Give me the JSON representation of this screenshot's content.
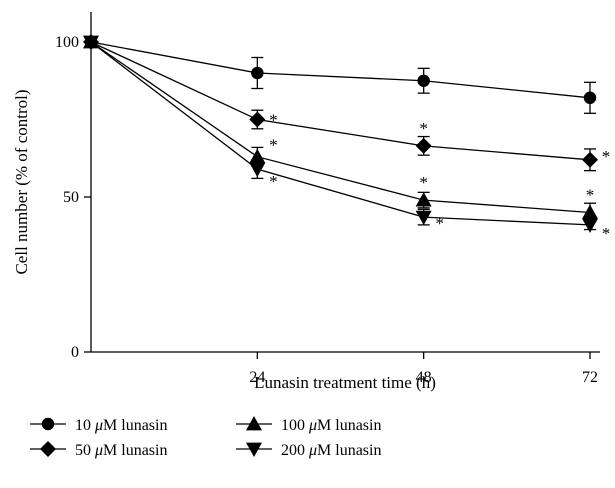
{
  "chart_data": {
    "type": "line",
    "xlabel": "Lunasin treatment time (h)",
    "ylabel": "Cell number (% of control)",
    "x": [
      0,
      24,
      48,
      72
    ],
    "xticks": [
      24,
      48,
      72
    ],
    "xtick_labels": [
      "24",
      "48",
      "72"
    ],
    "yticks": [
      0,
      50,
      100
    ],
    "ytick_labels": [
      "0",
      "50",
      "100"
    ],
    "xlim": [
      0,
      74
    ],
    "ylim": [
      0,
      110
    ],
    "grid": false,
    "legend_placement": "bottom",
    "significance_marker": "*",
    "series": [
      {
        "name": "10 μM lunasin",
        "legend_prefix": "10",
        "legend_mu": "μ",
        "legend_suffix": "M lunasin",
        "marker": "circle",
        "values": [
          100,
          90,
          87.5,
          82
        ],
        "errors": [
          0,
          5,
          4,
          5
        ],
        "significant": [
          false,
          false,
          false,
          false
        ]
      },
      {
        "name": "50 μM lunasin",
        "legend_prefix": "50",
        "legend_mu": "μ",
        "legend_suffix": "M lunasin",
        "marker": "diamond",
        "values": [
          100,
          75,
          66.5,
          62
        ],
        "errors": [
          0,
          3,
          3,
          3.5
        ],
        "significant": [
          false,
          true,
          true,
          true
        ]
      },
      {
        "name": "100 μM lunasin",
        "legend_prefix": "100",
        "legend_mu": "μ",
        "legend_suffix": "M lunasin",
        "marker": "triangle-up",
        "values": [
          100,
          63,
          49,
          45
        ],
        "errors": [
          0,
          3,
          2.5,
          3
        ],
        "significant": [
          false,
          true,
          true,
          true
        ]
      },
      {
        "name": "200 μM lunasin",
        "legend_prefix": "200",
        "legend_mu": "μ",
        "legend_suffix": "M lunasin",
        "marker": "triangle-down",
        "values": [
          100,
          59,
          43.5,
          41
        ],
        "errors": [
          0,
          3,
          2.5,
          1.5
        ],
        "significant": [
          false,
          true,
          true,
          true
        ]
      }
    ]
  }
}
